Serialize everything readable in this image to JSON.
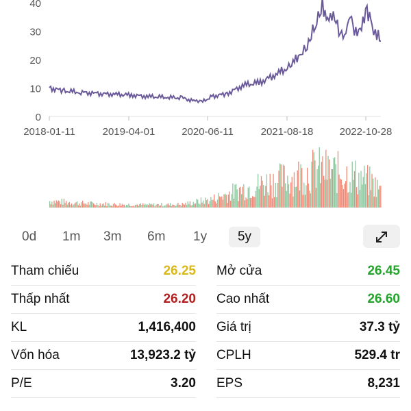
{
  "chart_data": [
    {
      "type": "line",
      "x_ticks": [
        "2018-01-11",
        "2019-04-01",
        "2020-06-11",
        "2021-08-18",
        "2022-10-28"
      ],
      "y_ticks": [
        0,
        10,
        20,
        30,
        40
      ],
      "ylim": [
        0,
        40
      ],
      "x": [
        "2018-01-11",
        "2018-04-01",
        "2018-07-01",
        "2018-10-01",
        "2019-01-01",
        "2019-04-01",
        "2019-07-01",
        "2019-10-01",
        "2020-01-01",
        "2020-03-20",
        "2020-04-15",
        "2020-06-11",
        "2020-09-01",
        "2020-12-01",
        "2021-03-01",
        "2021-06-01",
        "2021-08-18",
        "2021-10-01",
        "2021-11-10",
        "2021-12-10",
        "2022-01-01",
        "2022-02-01",
        "2022-03-01",
        "2022-04-01",
        "2022-05-01",
        "2022-06-01",
        "2022-07-01",
        "2022-08-01",
        "2022-09-01",
        "2022-10-01",
        "2022-10-28",
        "2022-11-15",
        "2022-12-01",
        "2022-12-15"
      ],
      "values": [
        10,
        9,
        8.5,
        8,
        7.8,
        7.5,
        7,
        6.8,
        6.5,
        5.2,
        5,
        7,
        8,
        11,
        12,
        15,
        18,
        22,
        24,
        30,
        33,
        39,
        35,
        37,
        30,
        27,
        35,
        29,
        33,
        38,
        32,
        30,
        28,
        26.5
      ],
      "grid": false
    },
    {
      "type": "bar",
      "description_series": "trading volume",
      "x": [
        "2018-01-11",
        "2018-07-01",
        "2019-01-01",
        "2019-07-01",
        "2020-01-01",
        "2020-06-11",
        "2020-12-01",
        "2021-06-01",
        "2021-08-18",
        "2022-01-01",
        "2022-04-01",
        "2022-07-01",
        "2022-10-28",
        "2022-12-15"
      ],
      "values": [
        12,
        8,
        6,
        5,
        6,
        15,
        35,
        50,
        55,
        70,
        65,
        60,
        45,
        30
      ],
      "colors": {
        "up": "#8fc8a0",
        "down": "#ef8a78"
      }
    }
  ],
  "colors": {
    "price_line": "#6a5a9a",
    "yellow": "#d9b81a",
    "red": "#b02020",
    "green": "#22a32a",
    "axis_text": "#555555"
  },
  "range_tabs": [
    {
      "label": "0d",
      "active": false
    },
    {
      "label": "1m",
      "active": false
    },
    {
      "label": "3m",
      "active": false
    },
    {
      "label": "6m",
      "active": false
    },
    {
      "label": "1y",
      "active": false
    },
    {
      "label": "5y",
      "active": true
    }
  ],
  "expand_icon": "expand-arrows-icon",
  "stats": {
    "ref_label": "Tham chiếu",
    "ref_value": "26.25",
    "open_label": "Mở cửa",
    "open_value": "26.45",
    "low_label": "Thấp nhất",
    "low_value": "26.20",
    "high_label": "Cao nhất",
    "high_value": "26.60",
    "vol_label": "KL",
    "vol_value": "1,416,400",
    "amount_label": "Giá trị",
    "amount_value": "37.3 tỷ",
    "cap_label": "Vốn hóa",
    "cap_value": "13,923.2 tỷ",
    "shares_label": "CPLH",
    "shares_value": "529.4 tr",
    "pe_label": "P/E",
    "pe_value": "3.20",
    "eps_label": "EPS",
    "eps_value": "8,231"
  }
}
